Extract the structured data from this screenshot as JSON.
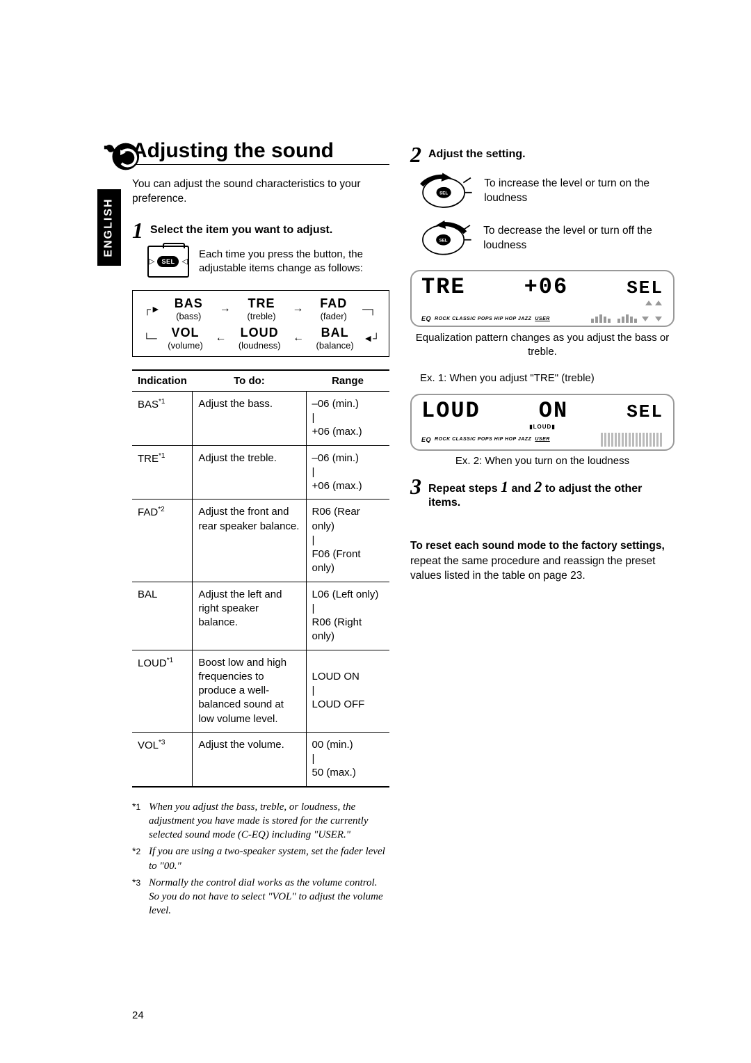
{
  "side_tab": "ENGLISH",
  "page_number": "24",
  "heading": "Adjusting the sound",
  "intro": "You can adjust the sound characteristics to your preference.",
  "step1": {
    "num": "1",
    "title": "Select the item you want to adjust.",
    "sel_label": "SEL",
    "note": "Each time you press the button, the adjustable items change as follows:"
  },
  "flow": {
    "items": [
      {
        "name": "BAS",
        "sub": "(bass)"
      },
      {
        "name": "TRE",
        "sub": "(treble)"
      },
      {
        "name": "FAD",
        "sub": "(fader)"
      },
      {
        "name": "VOL",
        "sub": "(volume)"
      },
      {
        "name": "LOUD",
        "sub": "(loudness)"
      },
      {
        "name": "BAL",
        "sub": "(balance)"
      }
    ]
  },
  "table": {
    "headers": [
      "Indication",
      "To do:",
      "Range"
    ],
    "rows": [
      {
        "ind": "BAS",
        "sup": "*1",
        "todo": "Adjust the bass.",
        "range": "–06 (min.)\n|\n+06 (max.)"
      },
      {
        "ind": "TRE",
        "sup": "*1",
        "todo": "Adjust the treble.",
        "range": "–06 (min.)\n|\n+06 (max.)"
      },
      {
        "ind": "FAD",
        "sup": "*2",
        "todo": "Adjust the front and rear speaker balance.",
        "range": "R06 (Rear only)\n|\nF06 (Front only)"
      },
      {
        "ind": "BAL",
        "sup": "",
        "todo": "Adjust the left and right speaker balance.",
        "range": "L06 (Left only)\n|\nR06 (Right only)"
      },
      {
        "ind": "LOUD",
        "sup": "*1",
        "todo": "Boost low and high frequencies to produce a well-balanced sound at low volume level.",
        "range": "\nLOUD ON\n|\nLOUD OFF"
      },
      {
        "ind": "VOL",
        "sup": "*3",
        "todo": "Adjust the volume.",
        "range": "00 (min.)\n|\n50 (max.)"
      }
    ]
  },
  "footnotes": [
    {
      "mark": "*1",
      "text": "When you adjust the bass, treble, or loudness, the adjustment you have made is stored for the currently selected sound mode (C-EQ) including \"USER.\""
    },
    {
      "mark": "*2",
      "text": "If you are using a two-speaker system, set the fader level to \"00.\""
    },
    {
      "mark": "*3",
      "text": "Normally the control dial works as the volume control. So you do not have to select \"VOL\" to adjust the volume level."
    }
  ],
  "step2": {
    "num": "2",
    "title": "Adjust the setting.",
    "increase": "To increase the level or turn on the loudness",
    "decrease": "To decrease the level or turn off the loudness",
    "sel_label": "SEL"
  },
  "display1": {
    "left": "TRE",
    "right": "+06",
    "corner": "SEL",
    "eq_prefix": "EQ",
    "eq_modes": "ROCK  CLASSIC  POPS  HIP HOP  JAZZ",
    "eq_user": "USER"
  },
  "caption1a": "Equalization pattern changes as you adjust the bass or treble.",
  "caption1b": "Ex. 1:  When you adjust \"TRE\" (treble)",
  "display2": {
    "left": "LOUD",
    "mid": "ON",
    "corner": "SEL",
    "loud_tag": "▮LOUD▮",
    "eq_prefix": "EQ",
    "eq_modes": "ROCK  CLASSIC  POPS  HIP HOP  JAZZ",
    "eq_user": "USER"
  },
  "caption2": "Ex. 2:  When you turn on the loudness",
  "step3": {
    "num": "3",
    "title_a": "Repeat steps ",
    "title_b": " and ",
    "title_c": " to adjust the other items.",
    "n1": "1",
    "n2": "2"
  },
  "reset": {
    "bold": "To reset each sound mode to the factory settings,",
    "rest": " repeat the same procedure and reassign the preset values listed in the table on page 23."
  }
}
